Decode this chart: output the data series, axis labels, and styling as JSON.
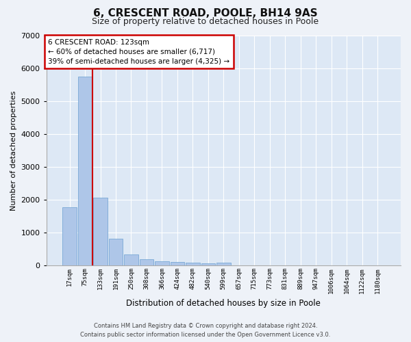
{
  "title": "6, CRESCENT ROAD, POOLE, BH14 9AS",
  "subtitle": "Size of property relative to detached houses in Poole",
  "xlabel": "Distribution of detached houses by size in Poole",
  "ylabel": "Number of detached properties",
  "bar_labels": [
    "17sqm",
    "75sqm",
    "133sqm",
    "191sqm",
    "250sqm",
    "308sqm",
    "366sqm",
    "424sqm",
    "482sqm",
    "540sqm",
    "599sqm",
    "657sqm",
    "715sqm",
    "773sqm",
    "831sqm",
    "889sqm",
    "947sqm",
    "1006sqm",
    "1064sqm",
    "1122sqm",
    "1180sqm"
  ],
  "bar_values": [
    1780,
    5750,
    2060,
    820,
    340,
    190,
    120,
    100,
    95,
    70,
    80,
    0,
    0,
    0,
    0,
    0,
    0,
    0,
    0,
    0,
    0
  ],
  "bar_color": "#aec6e8",
  "bar_edge_color": "#6a9fd0",
  "highlight_color": "#cc0000",
  "ylim": [
    0,
    7000
  ],
  "yticks": [
    0,
    1000,
    2000,
    3000,
    4000,
    5000,
    6000,
    7000
  ],
  "annotation_text": "6 CRESCENT ROAD: 123sqm\n← 60% of detached houses are smaller (6,717)\n39% of semi-detached houses are larger (4,325) →",
  "annotation_box_color": "#cc0000",
  "footer_line1": "Contains HM Land Registry data © Crown copyright and database right 2024.",
  "footer_line2": "Contains public sector information licensed under the Open Government Licence v3.0.",
  "background_color": "#dde8f5",
  "fig_background_color": "#eef2f8",
  "grid_color": "#ffffff",
  "spine_color": "#aaaaaa"
}
